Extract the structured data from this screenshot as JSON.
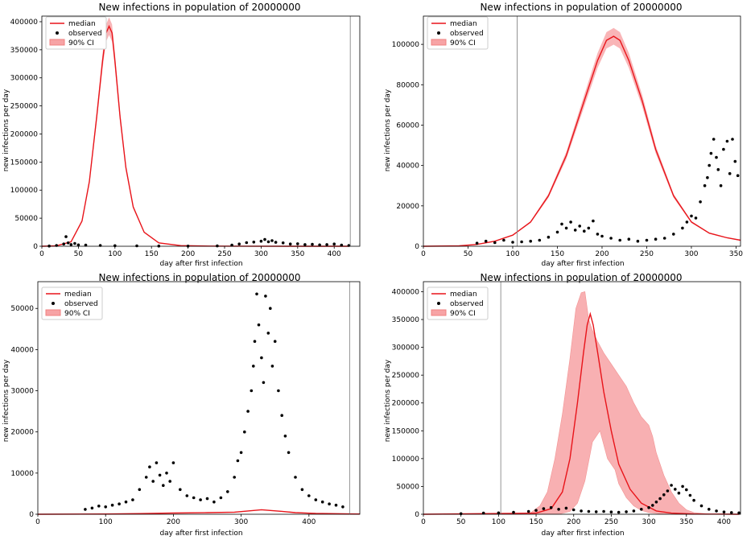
{
  "chart_data": [
    {
      "type": "line",
      "title": "New infections in population of 20000000",
      "xlabel": "day after first infection",
      "ylabel": "new infections per day",
      "xlim": [
        0,
        435
      ],
      "ylim": [
        0,
        410000
      ],
      "xticks": [
        0,
        50,
        100,
        150,
        200,
        250,
        300,
        350,
        400
      ],
      "yticks": [
        0,
        50000,
        100000,
        150000,
        200000,
        250000,
        300000,
        350000,
        400000
      ],
      "vline": 422,
      "legend": [
        "median",
        "observed",
        "90% CI"
      ],
      "colors": {
        "median": "#e8141a",
        "ci": "#f7a3a5",
        "observed": "#000000"
      },
      "median": {
        "x": [
          0,
          20,
          40,
          55,
          65,
          75,
          83,
          88,
          92,
          96,
          100,
          107,
          115,
          125,
          140,
          160,
          190,
          230,
          280,
          340,
          420
        ],
        "y": [
          0,
          800,
          8000,
          45000,
          115000,
          230000,
          330000,
          380000,
          392000,
          380000,
          330000,
          230000,
          140000,
          70000,
          25000,
          6000,
          1200,
          300,
          80,
          20,
          5
        ]
      },
      "observed": {
        "x": [
          10,
          20,
          30,
          33,
          36,
          40,
          45,
          50,
          60,
          80,
          100,
          130,
          160,
          200,
          240,
          260,
          270,
          280,
          290,
          300,
          305,
          310,
          315,
          320,
          330,
          340,
          350,
          360,
          370,
          380,
          390,
          400,
          410,
          420
        ],
        "y": [
          500,
          1500,
          4000,
          17000,
          6000,
          3000,
          5000,
          2500,
          2000,
          1500,
          1000,
          700,
          500,
          300,
          600,
          2000,
          4000,
          6500,
          7500,
          9000,
          12000,
          8000,
          10000,
          7000,
          6000,
          4000,
          4500,
          3000,
          3500,
          2500,
          3000,
          4000,
          2000,
          1500
        ]
      }
    },
    {
      "type": "line",
      "title": "New infections in population of 20000000",
      "xlabel": "day after first infection",
      "ylabel": "new infections per day",
      "xlim": [
        0,
        355
      ],
      "ylim": [
        0,
        114000
      ],
      "xticks": [
        0,
        50,
        100,
        150,
        200,
        250,
        300,
        350
      ],
      "yticks": [
        0,
        20000,
        40000,
        60000,
        80000,
        100000
      ],
      "vline": 105,
      "legend": [
        "median",
        "observed",
        "90% CI"
      ],
      "colors": {
        "median": "#e8141a",
        "ci": "#f7a3a5",
        "observed": "#000000"
      },
      "median": {
        "x": [
          0,
          40,
          60,
          80,
          100,
          120,
          140,
          160,
          180,
          195,
          205,
          213,
          220,
          230,
          245,
          260,
          280,
          300,
          320,
          340,
          355
        ],
        "y": [
          0,
          200,
          900,
          2500,
          5500,
          12000,
          25000,
          45000,
          72000,
          92000,
          102000,
          104000,
          102000,
          92000,
          72000,
          48000,
          25000,
          12000,
          6500,
          4200,
          3000
        ]
      },
      "observed": {
        "x": [
          60,
          70,
          80,
          90,
          100,
          110,
          120,
          130,
          140,
          150,
          155,
          160,
          165,
          170,
          175,
          180,
          185,
          190,
          195,
          200,
          210,
          220,
          230,
          240,
          250,
          260,
          270,
          280,
          290,
          295,
          300,
          305,
          310,
          315,
          318,
          320,
          322,
          325,
          328,
          330,
          333,
          336,
          340,
          343,
          346,
          349,
          352
        ],
        "y": [
          1500,
          2500,
          1800,
          3000,
          2000,
          2200,
          2500,
          3000,
          4500,
          7000,
          11000,
          9000,
          12000,
          8000,
          10000,
          7500,
          9000,
          12500,
          6000,
          5000,
          4000,
          3000,
          3500,
          2500,
          3000,
          3500,
          4000,
          6000,
          9000,
          12000,
          15000,
          14000,
          22000,
          30000,
          34000,
          40000,
          46000,
          53000,
          44000,
          38000,
          30000,
          48000,
          52000,
          36000,
          53000,
          42000,
          35000
        ]
      }
    },
    {
      "type": "line",
      "title": "New infections in population of 20000000",
      "xlabel": "day after first infection",
      "ylabel": "new infections per day",
      "xlim": [
        0,
        475
      ],
      "ylim": [
        0,
        56500
      ],
      "xticks": [
        0,
        100,
        200,
        300,
        400
      ],
      "yticks": [
        0,
        10000,
        20000,
        30000,
        40000,
        50000
      ],
      "vline": 460,
      "legend": [
        "median",
        "observed",
        "90% CI"
      ],
      "colors": {
        "median": "#e8141a",
        "ci": "#f7a3a5",
        "observed": "#000000"
      },
      "median": {
        "x": [
          0,
          100,
          150,
          200,
          250,
          290,
          310,
          330,
          345,
          360,
          380,
          410,
          460,
          475
        ],
        "y": [
          0,
          50,
          150,
          300,
          400,
          500,
          800,
          1100,
          900,
          700,
          400,
          200,
          80,
          50
        ]
      },
      "observed": {
        "x": [
          70,
          80,
          90,
          100,
          110,
          120,
          130,
          140,
          150,
          160,
          165,
          170,
          175,
          180,
          185,
          190,
          195,
          200,
          210,
          220,
          230,
          240,
          250,
          260,
          270,
          280,
          290,
          295,
          300,
          305,
          310,
          315,
          318,
          320,
          323,
          326,
          330,
          333,
          336,
          340,
          343,
          346,
          350,
          355,
          360,
          365,
          370,
          380,
          390,
          400,
          410,
          420,
          430,
          440,
          450
        ],
        "y": [
          1200,
          1500,
          2000,
          1800,
          2200,
          2500,
          3000,
          3500,
          6000,
          9000,
          11500,
          8000,
          12500,
          9500,
          7000,
          10000,
          8000,
          12500,
          6000,
          4500,
          4000,
          3500,
          3800,
          3000,
          4000,
          5500,
          9000,
          13000,
          15000,
          20000,
          25000,
          30000,
          36000,
          42000,
          53500,
          46000,
          38000,
          32000,
          53000,
          44000,
          50000,
          36000,
          42000,
          30000,
          24000,
          19000,
          15000,
          9000,
          6000,
          4500,
          3500,
          3000,
          2500,
          2200,
          1800
        ]
      }
    },
    {
      "type": "line",
      "title": "New infections in population of 20000000",
      "xlabel": "day after first infection",
      "ylabel": "new infections per day",
      "xlim": [
        0,
        422
      ],
      "ylim": [
        0,
        418000
      ],
      "xticks": [
        0,
        50,
        100,
        150,
        200,
        250,
        300,
        350,
        400
      ],
      "yticks": [
        0,
        50000,
        100000,
        150000,
        200000,
        250000,
        300000,
        350000,
        400000
      ],
      "vline": 103,
      "legend": [
        "median",
        "observed",
        "90% CI"
      ],
      "colors": {
        "median": "#e8141a",
        "ci": "#f7a3a5",
        "observed": "#000000"
      },
      "median": {
        "x": [
          0,
          150,
          170,
          185,
          195,
          205,
          213,
          218,
          222,
          226,
          232,
          240,
          250,
          260,
          275,
          290,
          310,
          330,
          360,
          420
        ],
        "y": [
          0,
          2000,
          10000,
          40000,
          100000,
          200000,
          290000,
          340000,
          360000,
          340000,
          290000,
          220000,
          150000,
          90000,
          45000,
          20000,
          6000,
          2000,
          500,
          50
        ]
      },
      "ci_lower": {
        "x": [
          0,
          180,
          195,
          205,
          215,
          225,
          235,
          245,
          250,
          255,
          260,
          270,
          280,
          290,
          300,
          310,
          320,
          340,
          360,
          422
        ],
        "y": [
          0,
          0,
          5000,
          20000,
          60000,
          130000,
          150000,
          100000,
          90000,
          80000,
          55000,
          30000,
          15000,
          7000,
          3000,
          1500,
          500,
          100,
          20,
          0
        ]
      },
      "ci_upper": {
        "x": [
          0,
          140,
          155,
          165,
          175,
          185,
          195,
          203,
          210,
          215,
          220,
          225,
          232,
          240,
          250,
          260,
          270,
          280,
          290,
          300,
          305,
          310,
          320,
          330,
          340,
          350,
          360,
          380,
          422
        ],
        "y": [
          0,
          0,
          15000,
          40000,
          100000,
          180000,
          280000,
          370000,
          398000,
          400000,
          350000,
          330000,
          310000,
          290000,
          270000,
          250000,
          230000,
          200000,
          175000,
          160000,
          140000,
          110000,
          70000,
          40000,
          20000,
          8000,
          3000,
          500,
          0
        ]
      },
      "observed": {
        "x": [
          50,
          80,
          100,
          120,
          140,
          150,
          160,
          170,
          180,
          190,
          200,
          210,
          220,
          230,
          240,
          250,
          260,
          270,
          280,
          290,
          300,
          305,
          310,
          315,
          320,
          325,
          330,
          335,
          340,
          345,
          350,
          355,
          360,
          370,
          380,
          390,
          400,
          410,
          420
        ],
        "y": [
          1000,
          2000,
          2500,
          3500,
          5000,
          7000,
          10000,
          12000,
          9000,
          11000,
          8000,
          6000,
          5000,
          4500,
          5000,
          4000,
          3500,
          4500,
          6000,
          9000,
          12000,
          16000,
          22000,
          28000,
          35000,
          42000,
          52000,
          45000,
          38000,
          50000,
          44000,
          34000,
          25000,
          15000,
          9000,
          6000,
          4000,
          3000,
          2500
        ]
      }
    }
  ]
}
